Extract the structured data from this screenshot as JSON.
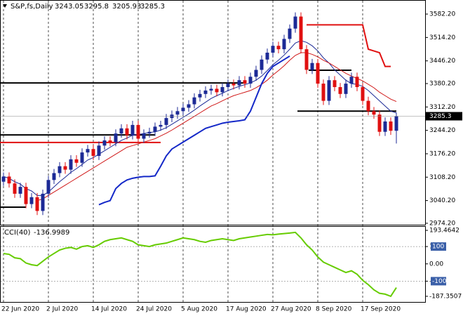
{
  "chart_data": [
    {
      "type": "candlestick",
      "title": "S&P,fs,Daily",
      "categories": [
        "22 Jun 2020",
        null,
        null,
        null,
        null,
        null,
        null,
        null,
        "2 Jul 2020",
        null,
        null,
        null,
        null,
        null,
        null,
        null,
        "14 Jul 2020",
        null,
        null,
        null,
        null,
        null,
        null,
        null,
        "24 Jul 2020",
        null,
        null,
        null,
        null,
        null,
        null,
        null,
        "5 Aug 2020",
        null,
        null,
        null,
        null,
        null,
        null,
        null,
        "17 Aug 2020",
        null,
        null,
        null,
        null,
        null,
        null,
        null,
        "27 Aug 2020",
        null,
        null,
        null,
        null,
        null,
        null,
        null,
        "8 Sep 2020",
        null,
        null,
        null,
        null,
        null,
        null,
        null,
        "17 Sep 2020",
        null,
        null,
        null,
        null,
        null,
        null
      ],
      "open": [
        3095,
        3110,
        3090,
        3060,
        3080,
        3030,
        3050,
        3010,
        3060,
        3100,
        3120,
        3140,
        3130,
        3160,
        3150,
        3180,
        3190,
        3170,
        3200,
        3215,
        3210,
        3235,
        3250,
        3230,
        3260,
        3220,
        3235,
        3240,
        3255,
        3260,
        3280,
        3290,
        3300,
        3310,
        3320,
        3340,
        3350,
        3360,
        3365,
        3355,
        3370,
        3380,
        3375,
        3390,
        3380,
        3400,
        3420,
        3450,
        3470,
        3490,
        3480,
        3510,
        3540,
        3575,
        3480,
        3420,
        3440,
        3380,
        3330,
        3390,
        3370,
        3350,
        3380,
        3400,
        3370,
        3330,
        3300,
        3290,
        3240,
        3270,
        3243.05
      ],
      "high": [
        3122,
        3122,
        3102,
        3092,
        3092,
        3062,
        3062,
        3072,
        3112,
        3132,
        3152,
        3152,
        3172,
        3172,
        3192,
        3202,
        3202,
        3212,
        3227,
        3227,
        3247,
        3262,
        3262,
        3272,
        3272,
        3247,
        3252,
        3267,
        3272,
        3292,
        3302,
        3312,
        3322,
        3332,
        3352,
        3362,
        3372,
        3377,
        3377,
        3382,
        3392,
        3392,
        3402,
        3402,
        3412,
        3432,
        3462,
        3482,
        3502,
        3502,
        3522,
        3552,
        3587,
        3587,
        3492,
        3452,
        3452,
        3392,
        3402,
        3402,
        3382,
        3392,
        3412,
        3412,
        3382,
        3342,
        3312,
        3302,
        3282,
        3282,
        3295.8
      ],
      "low": [
        3083,
        3078,
        3048,
        3048,
        3018,
        3018,
        2998,
        2998,
        3048,
        3088,
        3108,
        3118,
        3118,
        3138,
        3138,
        3168,
        3158,
        3158,
        3188,
        3198,
        3198,
        3223,
        3218,
        3218,
        3208,
        3208,
        3223,
        3228,
        3243,
        3248,
        3268,
        3278,
        3288,
        3298,
        3308,
        3328,
        3338,
        3348,
        3343,
        3343,
        3358,
        3363,
        3363,
        3368,
        3368,
        3388,
        3408,
        3438,
        3458,
        3468,
        3468,
        3498,
        3528,
        3468,
        3408,
        3408,
        3368,
        3318,
        3318,
        3358,
        3338,
        3338,
        3368,
        3358,
        3318,
        3288,
        3278,
        3228,
        3228,
        3231,
        3205.93
      ],
      "close": [
        3110,
        3090,
        3060,
        3080,
        3030,
        3050,
        3010,
        3060,
        3100,
        3120,
        3140,
        3130,
        3160,
        3150,
        3180,
        3190,
        3170,
        3200,
        3215,
        3210,
        3235,
        3250,
        3230,
        3260,
        3220,
        3235,
        3240,
        3255,
        3260,
        3280,
        3290,
        3300,
        3310,
        3320,
        3340,
        3350,
        3360,
        3365,
        3355,
        3370,
        3380,
        3375,
        3390,
        3380,
        3400,
        3420,
        3450,
        3470,
        3490,
        3480,
        3510,
        3540,
        3575,
        3480,
        3420,
        3440,
        3380,
        3330,
        3390,
        3370,
        3350,
        3380,
        3400,
        3370,
        3330,
        3300,
        3290,
        3240,
        3270,
        3243.05,
        3285.3
      ],
      "up_color": "#1c2a96",
      "down_color": "#e01010",
      "overlays": [
        {
          "color": "#1c2a96",
          "values": [
            3110,
            3105,
            3095,
            3088,
            3075,
            3068,
            3055,
            3055,
            3065,
            3080,
            3095,
            3108,
            3122,
            3133,
            3145,
            3158,
            3165,
            3175,
            3185,
            3195,
            3205,
            3215,
            3222,
            3230,
            3232,
            3235,
            3238,
            3240,
            3245,
            3252,
            3262,
            3272,
            3282,
            3292,
            3303,
            3315,
            3326,
            3337,
            3345,
            3352,
            3360,
            3366,
            3372,
            3377,
            3382,
            3390,
            3402,
            3418,
            3435,
            3448,
            3463,
            3480,
            3498,
            3505,
            3500,
            3490,
            3475,
            3455,
            3440,
            3420,
            3405,
            3390,
            3380,
            3378,
            3372,
            3360,
            3345,
            3330,
            3315,
            3300,
            3295
          ]
        },
        {
          "color": "#d01818",
          "values": [
            null,
            null,
            null,
            null,
            null,
            null,
            3040,
            3045,
            3055,
            3065,
            3075,
            3085,
            3095,
            3105,
            3115,
            3125,
            3135,
            3145,
            3155,
            3165,
            3175,
            3185,
            3195,
            3200,
            3205,
            3210,
            3215,
            3220,
            3228,
            3236,
            3245,
            3255,
            3265,
            3275,
            3285,
            3295,
            3305,
            3315,
            3322,
            3330,
            3338,
            3345,
            3350,
            3355,
            3360,
            3368,
            3378,
            3390,
            3405,
            3418,
            3432,
            3448,
            3462,
            3470,
            3470,
            3465,
            3458,
            3448,
            3440,
            3430,
            3420,
            3410,
            3402,
            3395,
            3388,
            3378,
            3368,
            3355,
            3345,
            3335,
            3328
          ]
        },
        {
          "color": "#1428c8",
          "values": [
            null,
            null,
            null,
            null,
            null,
            null,
            null,
            null,
            null,
            null,
            null,
            null,
            null,
            null,
            null,
            null,
            null,
            3028,
            3035,
            3040,
            3075,
            3090,
            3100,
            3105,
            3108,
            3110,
            3110,
            3112,
            3140,
            3170,
            3190,
            3200,
            3210,
            3220,
            3230,
            3240,
            3250,
            3255,
            3260,
            3265,
            3268,
            3270,
            3272,
            3275,
            3300,
            3340,
            3380,
            3410,
            3430,
            3440,
            3450,
            3460,
            null,
            null,
            null,
            null,
            null,
            null,
            null,
            null,
            null,
            null,
            null,
            null,
            null,
            null,
            null,
            null,
            null,
            null,
            null
          ]
        },
        {
          "color": "#e01010",
          "values": [
            null,
            null,
            null,
            null,
            null,
            null,
            null,
            null,
            null,
            null,
            null,
            null,
            null,
            null,
            null,
            null,
            null,
            null,
            null,
            null,
            null,
            null,
            null,
            null,
            null,
            null,
            null,
            null,
            null,
            null,
            null,
            null,
            null,
            null,
            null,
            null,
            null,
            null,
            null,
            null,
            null,
            null,
            null,
            null,
            null,
            null,
            null,
            null,
            null,
            null,
            null,
            null,
            null,
            null,
            3551,
            3551,
            3551,
            3551,
            3551,
            3551,
            3551,
            3551,
            3551,
            3551,
            3551,
            3480,
            3475,
            3470,
            3430,
            3430,
            null
          ]
        }
      ],
      "levels": [
        {
          "value": 3382,
          "from": 0,
          "to": 43,
          "color": "#000000"
        },
        {
          "value": 3231,
          "from": 0,
          "to": 27,
          "color": "#000000"
        },
        {
          "value": 3021,
          "from": 0,
          "to": 4,
          "color": "#000000"
        },
        {
          "value": 3209,
          "from": 0,
          "to": 28,
          "color": "#e01010"
        },
        {
          "value": 3419,
          "from": 55,
          "to": 62,
          "color": "#000000"
        },
        {
          "value": 3300,
          "from": 53,
          "to": 70,
          "color": "#000000"
        }
      ],
      "ylim": [
        2970,
        3619
      ],
      "yticks": [
        {
          "value": 3582.2,
          "label": "3582.20"
        },
        {
          "value": 3514.2,
          "label": "3514.20"
        },
        {
          "value": 3446.2,
          "label": "3446.20"
        },
        {
          "value": 3380.2,
          "label": "3380.20"
        },
        {
          "value": 3312.2,
          "label": "3312.20"
        },
        {
          "value": 3244.2,
          "label": "3244.20"
        },
        {
          "value": 3176.2,
          "label": "3176.20"
        },
        {
          "value": 3108.2,
          "label": "3108.20"
        },
        {
          "value": 3040.2,
          "label": "3040.20"
        },
        {
          "value": 2974.2,
          "label": "2974.20"
        }
      ]
    },
    {
      "type": "line",
      "title": "CCI(40)",
      "color": "#66cc00",
      "values": [
        60,
        55,
        35,
        30,
        5,
        -5,
        -10,
        15,
        40,
        60,
        80,
        90,
        95,
        85,
        100,
        105,
        95,
        110,
        130,
        140,
        145,
        150,
        140,
        130,
        110,
        105,
        100,
        110,
        115,
        120,
        130,
        140,
        150,
        145,
        140,
        130,
        125,
        135,
        140,
        145,
        140,
        135,
        145,
        150,
        155,
        160,
        165,
        170,
        168,
        172,
        175,
        178,
        182,
        150,
        110,
        80,
        40,
        10,
        -5,
        -20,
        -35,
        -50,
        -40,
        -60,
        -95,
        -120,
        -150,
        -170,
        -175,
        -187.3507,
        -136.9989
      ],
      "ylim": [
        -220,
        218
      ],
      "yticks": [
        193.4642,
        100,
        {
          "value": 0,
          "label": "0.00"
        },
        -100,
        -187.3507
      ]
    }
  ]
}
